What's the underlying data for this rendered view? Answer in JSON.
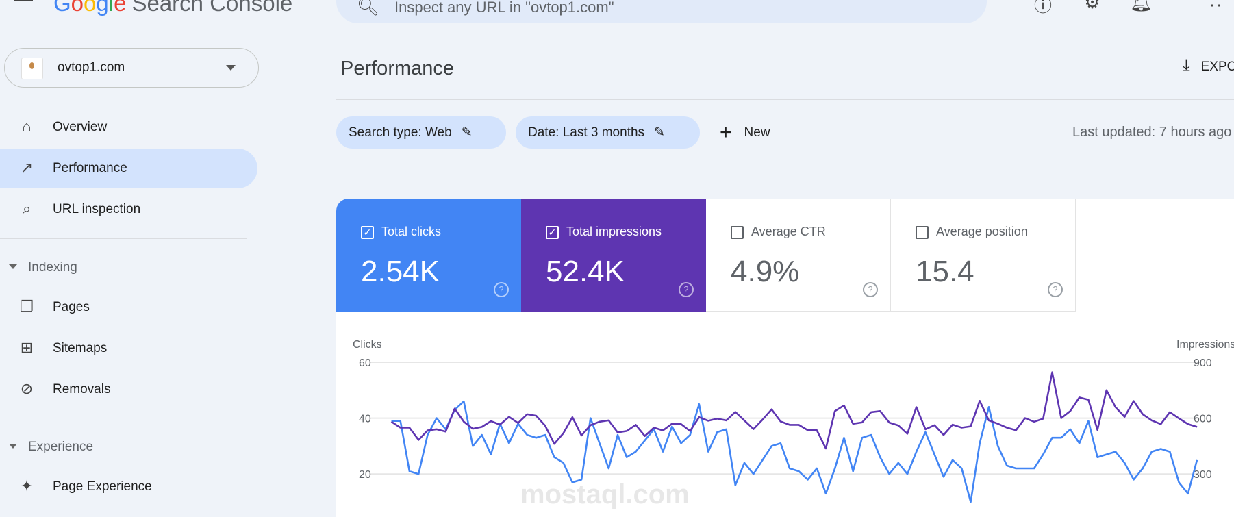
{
  "header": {
    "logo_google": [
      "G",
      "o",
      "o",
      "g",
      "l",
      "e"
    ],
    "logo_product": "Search Console",
    "search_placeholder": "Inspect any URL in \"ovtop1.com\"",
    "icons": [
      "help-icon",
      "account-settings-icon",
      "notifications-icon",
      "apps-icon"
    ]
  },
  "property": {
    "name": "ovtop1.com"
  },
  "sidebar": {
    "items": [
      {
        "label": "Overview",
        "icon": "home-icon"
      },
      {
        "label": "Performance",
        "icon": "trending-up-icon",
        "active": true
      },
      {
        "label": "URL inspection",
        "icon": "search-icon"
      }
    ],
    "sections": [
      {
        "label": "Indexing",
        "items": [
          {
            "label": "Pages",
            "icon": "pages-icon"
          },
          {
            "label": "Sitemaps",
            "icon": "sitemap-icon"
          },
          {
            "label": "Removals",
            "icon": "visibility-off-icon"
          }
        ]
      },
      {
        "label": "Experience",
        "items": [
          {
            "label": "Page Experience",
            "icon": "page-experience-icon"
          }
        ]
      }
    ]
  },
  "main": {
    "title": "Performance",
    "export_label": "EXPORT",
    "filters": [
      {
        "label": "Search type: Web"
      },
      {
        "label": "Date: Last 3 months"
      }
    ],
    "new_label": "New",
    "last_updated": "Last updated: 7 hours ago",
    "metrics": [
      {
        "label": "Total clicks",
        "value": "2.54K",
        "checked": true,
        "color": "#4285f4"
      },
      {
        "label": "Total impressions",
        "value": "52.4K",
        "checked": true,
        "color": "#5e35b1"
      },
      {
        "label": "Average CTR",
        "value": "4.9%",
        "checked": false
      },
      {
        "label": "Average position",
        "value": "15.4",
        "checked": false
      }
    ],
    "watermark": "mostaql.com"
  },
  "chart_data": {
    "type": "line",
    "left_axis_label": "Clicks",
    "right_axis_label": "Impressions",
    "left_ticks": [
      "60",
      "40",
      "20"
    ],
    "right_ticks": [
      "900",
      "600",
      "300"
    ],
    "left_ylim": [
      0,
      60
    ],
    "right_ylim": [
      0,
      900
    ],
    "grid": true,
    "series": [
      {
        "name": "Clicks",
        "axis": "left",
        "color": "#4285f4",
        "values": [
          39,
          39,
          21,
          20,
          34,
          40,
          36,
          43,
          46,
          30,
          34,
          27,
          38,
          31,
          38,
          34,
          33,
          34,
          26,
          24,
          17,
          18,
          40,
          31,
          22,
          34,
          26,
          28,
          32,
          36,
          28,
          37,
          31,
          34,
          45,
          28,
          35,
          36,
          16,
          24,
          20,
          25,
          30,
          31,
          22,
          21,
          18,
          22,
          13,
          22,
          33,
          21,
          33,
          34,
          26,
          20,
          24,
          20,
          28,
          35,
          27,
          19,
          25,
          22,
          10,
          31,
          44,
          30,
          23,
          22,
          22,
          22,
          27,
          33,
          33,
          36,
          31,
          39,
          26,
          27,
          28,
          24,
          18,
          22,
          28,
          29,
          28,
          17,
          13,
          25
        ]
      },
      {
        "name": "Impressions",
        "axis": "right",
        "color": "#5e35b1",
        "values": [
          581,
          549,
          549,
          483,
          534,
          540,
          528,
          651,
          581,
          543,
          553,
          584,
          565,
          607,
          574,
          621,
          613,
          559,
          462,
          519,
          605,
          507,
          562,
          581,
          588,
          523,
          531,
          564,
          504,
          549,
          534,
          570,
          568,
          531,
          605,
          586,
          597,
          588,
          633,
          587,
          541,
          592,
          647,
          582,
          564,
          564,
          535,
          535,
          437,
          638,
          668,
          570,
          577,
          632,
          638,
          576,
          561,
          516,
          659,
          540,
          562,
          510,
          565,
          549,
          556,
          693,
          588,
          570,
          549,
          535,
          600,
          581,
          597,
          846,
          600,
          638,
          711,
          699,
          537,
          750,
          659,
          607,
          692,
          621,
          588,
          568,
          632,
          599,
          568,
          553
        ]
      }
    ]
  }
}
